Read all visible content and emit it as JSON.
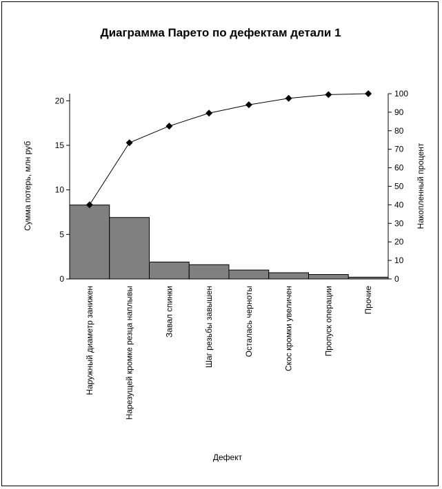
{
  "chart_data": {
    "type": "bar",
    "title": "Диаграмма Парето по дефектам детали 1",
    "xlabel": "Дефект",
    "ylabel": "Сумма потерь, млн руб",
    "y2label": "Накопленный процент",
    "ylim": [
      0,
      20.8
    ],
    "y2lim": [
      0,
      100
    ],
    "yticks": [
      0,
      5,
      10,
      15,
      20
    ],
    "y2ticks": [
      0,
      10,
      20,
      30,
      40,
      50,
      60,
      70,
      80,
      90,
      100
    ],
    "grid": false,
    "legend": "none",
    "categories": [
      "Наружный диаметр занижен",
      "Нарезущей кромке резца наплывы",
      "Завал спинки",
      "Шаг резьбы завышен",
      "Осталась черноты",
      "Скос кромки увеличен",
      "Пропуск операции",
      "Прочие"
    ],
    "series": [
      {
        "type": "bar",
        "values": [
          8.3,
          6.9,
          1.9,
          1.6,
          1.0,
          0.7,
          0.5,
          0.2
        ],
        "color": "#808080"
      },
      {
        "type": "line",
        "axis": "right",
        "values": [
          40,
          73.5,
          82.5,
          89.5,
          94,
          97.5,
          99.5,
          100
        ],
        "color": "#000000"
      }
    ]
  }
}
